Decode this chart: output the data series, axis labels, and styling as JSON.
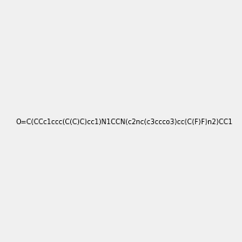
{
  "smiles": "O=C(CCc1ccc(C(C)C)cc1)N1CCN(c2nc(c3ccco3)cc(C(F)F)n2)CC1",
  "image_size": 300,
  "background_color": "#f0f0f0",
  "atom_colors": {
    "N": "#0000ff",
    "O": "#ff0000",
    "F": "#ff00ff"
  },
  "title": ""
}
